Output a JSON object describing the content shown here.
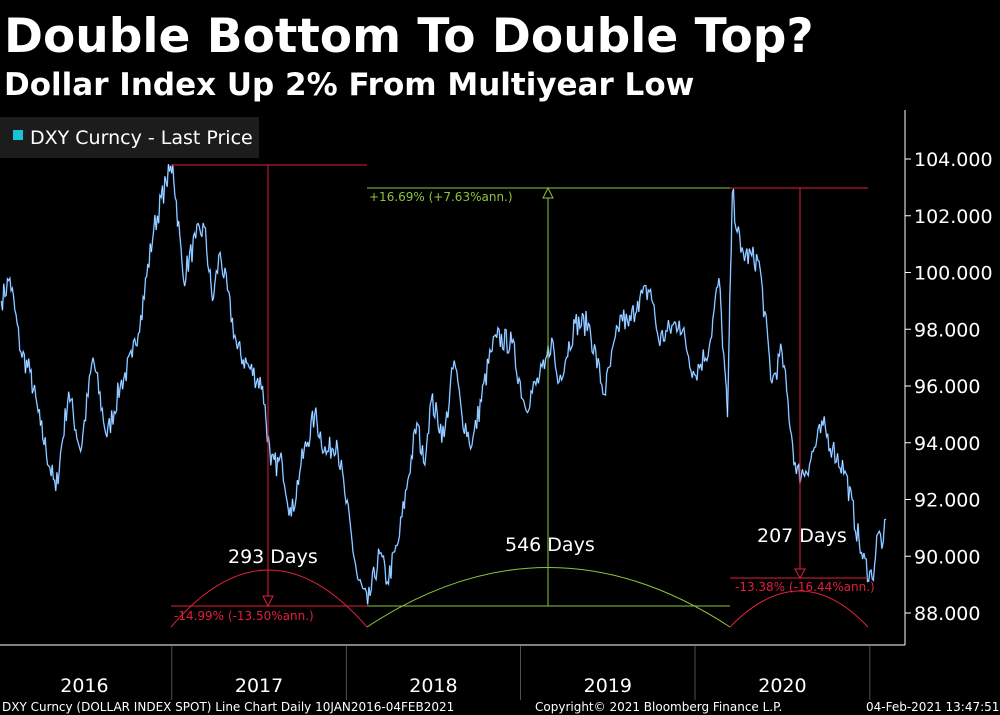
{
  "title": "Double Bottom To Double Top?",
  "subtitle": "Dollar Index Up 2% From Multiyear Low",
  "legend": {
    "label": "DXY Curncy - Last Price",
    "color": "#19c3d6"
  },
  "footer": {
    "left": "DXY Curncy (DOLLAR INDEX SPOT) Line Chart  Daily 10JAN2016-04FEB2021",
    "center": "Copyright© 2021 Bloomberg Finance L.P.",
    "right": "04-Feb-2021 13:47:51"
  },
  "annotations": {
    "a1_pct": "-14.99% (-13.50%ann.)",
    "a1_days": "293 Days",
    "a2_pct": "+16.69% (+7.63%ann.)",
    "a2_days": "546 Days",
    "a3_pct": "-13.38% (-16.44%ann.)",
    "a3_days": "207 Days",
    "colors": {
      "down": "#e0203a",
      "up": "#8cc43c"
    }
  },
  "chart_data": {
    "type": "line",
    "title": "Double Bottom To Double Top?",
    "subtitle": "Dollar Index Up 2% From Multiyear Low",
    "ylim": [
      87,
      105.5
    ],
    "y_ticks": [
      "104.000",
      "102.000",
      "100.000",
      "98.000",
      "96.000",
      "94.000",
      "92.000",
      "90.000",
      "88.000"
    ],
    "x_ticks": [
      "2016",
      "2017",
      "2018",
      "2019",
      "2020"
    ],
    "grid": false,
    "legend": "top-left",
    "line_color": "#3a8fe8",
    "series": [
      {
        "name": "DXY Curncy - Last Price",
        "points": [
          [
            "2016-01-10",
            99.0
          ],
          [
            "2016-01-28",
            99.8
          ],
          [
            "2016-02-20",
            97.2
          ],
          [
            "2016-03-10",
            96.5
          ],
          [
            "2016-04-01",
            94.6
          ],
          [
            "2016-05-03",
            92.3
          ],
          [
            "2016-05-30",
            95.8
          ],
          [
            "2016-06-24",
            93.7
          ],
          [
            "2016-07-20",
            97.0
          ],
          [
            "2016-08-18",
            94.2
          ],
          [
            "2016-09-15",
            96.0
          ],
          [
            "2016-10-10",
            97.0
          ],
          [
            "2016-10-28",
            98.5
          ],
          [
            "2016-11-24",
            101.5
          ],
          [
            "2016-12-20",
            103.2
          ],
          [
            "2017-01-03",
            103.8
          ],
          [
            "2017-01-25",
            99.8
          ],
          [
            "2017-02-20",
            101.2
          ],
          [
            "2017-03-10",
            101.6
          ],
          [
            "2017-03-27",
            99.0
          ],
          [
            "2017-04-12",
            100.7
          ],
          [
            "2017-05-18",
            97.3
          ],
          [
            "2017-06-14",
            96.6
          ],
          [
            "2017-07-10",
            96.0
          ],
          [
            "2017-07-27",
            93.2
          ],
          [
            "2017-08-20",
            93.3
          ],
          [
            "2017-09-08",
            91.4
          ],
          [
            "2017-09-28",
            93.2
          ],
          [
            "2017-10-27",
            95.0
          ],
          [
            "2017-11-20",
            93.6
          ],
          [
            "2017-12-12",
            94.1
          ],
          [
            "2017-12-29",
            92.2
          ],
          [
            "2018-01-25",
            89.2
          ],
          [
            "2018-02-15",
            88.3
          ],
          [
            "2018-03-12",
            90.1
          ],
          [
            "2018-03-28",
            89.1
          ],
          [
            "2018-04-20",
            90.5
          ],
          [
            "2018-05-10",
            92.7
          ],
          [
            "2018-05-29",
            94.7
          ],
          [
            "2018-06-12",
            93.3
          ],
          [
            "2018-06-28",
            95.5
          ],
          [
            "2018-07-25",
            94.2
          ],
          [
            "2018-08-15",
            96.9
          ],
          [
            "2018-08-31",
            95.0
          ],
          [
            "2018-09-21",
            93.9
          ],
          [
            "2018-10-31",
            97.2
          ],
          [
            "2018-11-12",
            97.7
          ],
          [
            "2018-12-14",
            97.5
          ],
          [
            "2019-01-10",
            95.3
          ],
          [
            "2019-02-20",
            96.6
          ],
          [
            "2019-03-07",
            97.7
          ],
          [
            "2019-03-20",
            96.1
          ],
          [
            "2019-04-25",
            98.2
          ],
          [
            "2019-05-23",
            98.2
          ],
          [
            "2019-06-25",
            95.7
          ],
          [
            "2019-07-31",
            98.5
          ],
          [
            "2019-08-15",
            98.1
          ],
          [
            "2019-09-03",
            99.0
          ],
          [
            "2019-09-30",
            99.4
          ],
          [
            "2019-10-17",
            97.6
          ],
          [
            "2019-11-29",
            98.3
          ],
          [
            "2019-12-31",
            96.4
          ],
          [
            "2020-01-31",
            97.4
          ],
          [
            "2020-02-20",
            99.8
          ],
          [
            "2020-03-09",
            94.9
          ],
          [
            "2020-03-19",
            102.8
          ],
          [
            "2020-04-06",
            100.7
          ],
          [
            "2020-05-14",
            100.4
          ],
          [
            "2020-06-10",
            96.1
          ],
          [
            "2020-07-01",
            97.2
          ],
          [
            "2020-07-31",
            92.9
          ],
          [
            "2020-08-20",
            93.0
          ],
          [
            "2020-09-25",
            94.6
          ],
          [
            "2020-10-15",
            93.8
          ],
          [
            "2020-11-10",
            93.0
          ],
          [
            "2020-12-17",
            89.9
          ],
          [
            "2021-01-06",
            89.2
          ],
          [
            "2021-01-18",
            90.8
          ],
          [
            "2021-01-29",
            90.5
          ],
          [
            "2021-02-04",
            91.3
          ]
        ]
      }
    ]
  }
}
